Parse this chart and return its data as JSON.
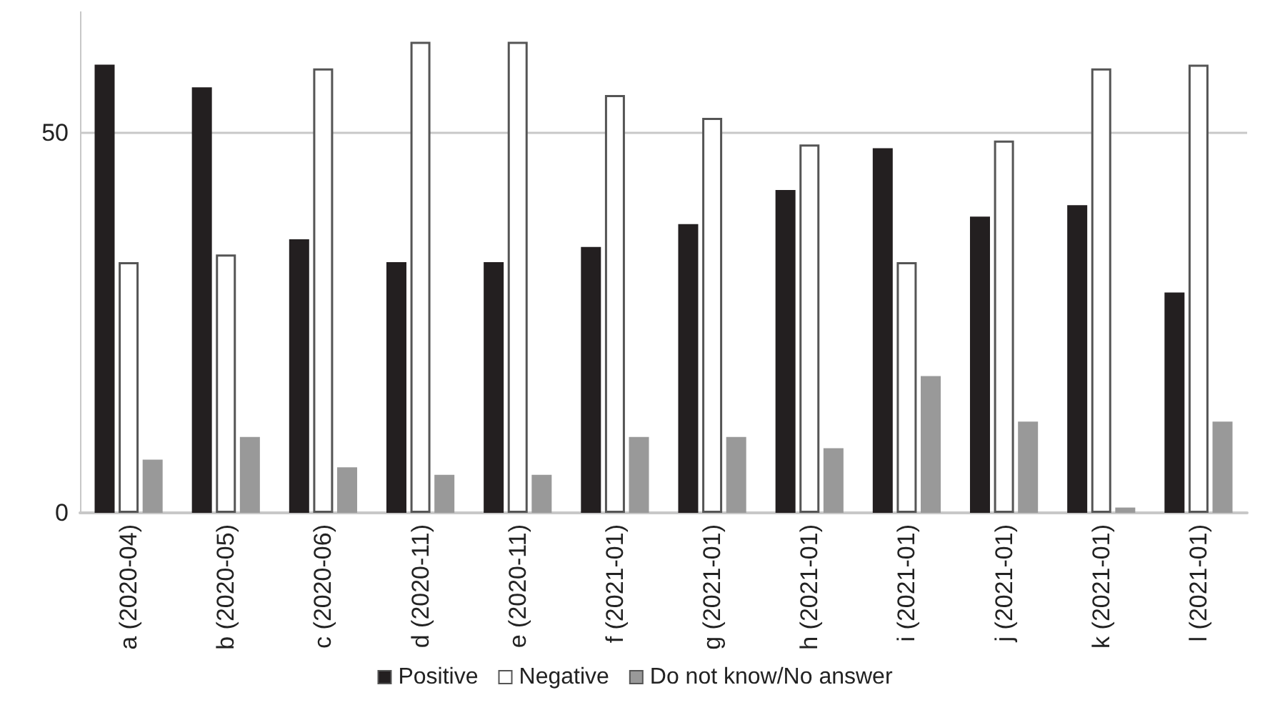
{
  "chart_data": {
    "type": "bar",
    "categories": [
      "a (2020-04)",
      "b (2020-05)",
      "c (2020-06)",
      "d (2020-11)",
      "e (2020-11)",
      "f (2021-01)",
      "g (2021-01)",
      "h (2021-01)",
      "i (2021-01)",
      "j (2021-01)",
      "k (2021-01)",
      "l (2021-01)"
    ],
    "series": [
      {
        "name": "Positive",
        "color": "#231f20",
        "values": [
          59,
          56,
          36,
          33,
          33,
          35,
          38,
          42.5,
          48,
          39,
          40.5,
          29
        ]
      },
      {
        "name": "Negative",
        "color": "#ffffff",
        "values": [
          33,
          34,
          58.5,
          62,
          62,
          55,
          52,
          48.5,
          33,
          49,
          58.5,
          59
        ]
      },
      {
        "name": "Do not know/No answer",
        "color": "#999999",
        "values": [
          7,
          10,
          6,
          5,
          5,
          10,
          10,
          8.5,
          18,
          12,
          0.7,
          12
        ]
      }
    ],
    "ylim": [
      0,
      66
    ],
    "yticks": [
      0,
      50
    ],
    "grid": "y",
    "legend": "bottom"
  }
}
